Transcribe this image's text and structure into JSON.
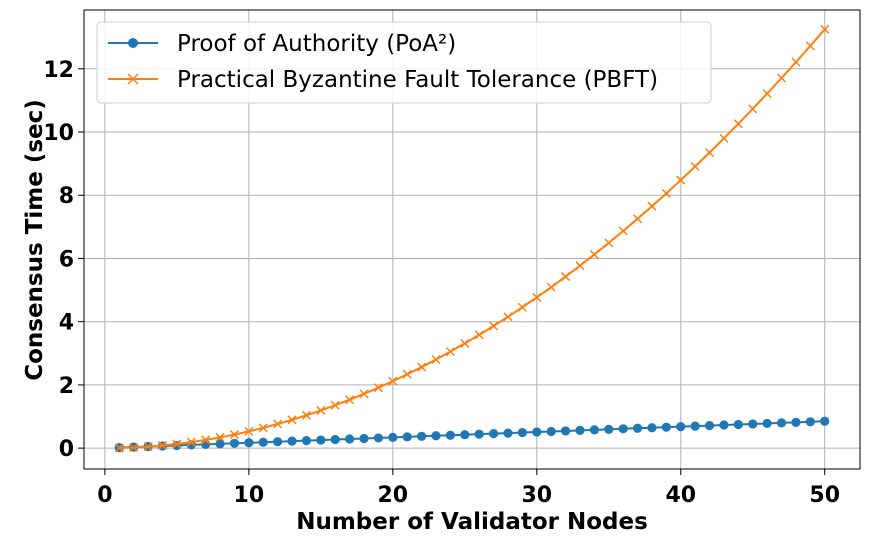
{
  "chart_data": {
    "type": "line",
    "title": "",
    "xlabel": "Number of Validator Nodes",
    "ylabel": "Consensus Time (sec)",
    "xlim": [
      -1.45,
      52.45
    ],
    "ylim": [
      -0.66,
      13.86
    ],
    "xticks": [
      0,
      10,
      20,
      30,
      40,
      50
    ],
    "yticks": [
      0,
      2,
      4,
      6,
      8,
      10,
      12
    ],
    "grid": true,
    "legend_position": "top-left",
    "x": [
      1,
      2,
      3,
      4,
      5,
      6,
      7,
      8,
      9,
      10,
      11,
      12,
      13,
      14,
      15,
      16,
      17,
      18,
      19,
      20,
      21,
      22,
      23,
      24,
      25,
      26,
      27,
      28,
      29,
      30,
      31,
      32,
      33,
      34,
      35,
      36,
      37,
      38,
      39,
      40,
      41,
      42,
      43,
      44,
      45,
      46,
      47,
      48,
      49,
      50
    ],
    "series": [
      {
        "name": "Proof of Authority (PoA²)",
        "color": "#1f77b4",
        "marker": "circle",
        "values": [
          0.017,
          0.034,
          0.051,
          0.068,
          0.085,
          0.102,
          0.119,
          0.136,
          0.153,
          0.17,
          0.187,
          0.204,
          0.221,
          0.238,
          0.255,
          0.272,
          0.289,
          0.306,
          0.323,
          0.34,
          0.357,
          0.374,
          0.391,
          0.408,
          0.425,
          0.442,
          0.459,
          0.476,
          0.493,
          0.51,
          0.527,
          0.544,
          0.561,
          0.578,
          0.595,
          0.612,
          0.629,
          0.646,
          0.663,
          0.68,
          0.697,
          0.714,
          0.731,
          0.748,
          0.765,
          0.782,
          0.799,
          0.816,
          0.833,
          0.85
        ]
      },
      {
        "name": "Practical Byzantine Fault Tolerance (PBFT)",
        "color": "#ff7f0e",
        "marker": "x",
        "values": [
          0.005,
          0.021,
          0.048,
          0.085,
          0.132,
          0.191,
          0.26,
          0.339,
          0.429,
          0.53,
          0.641,
          0.763,
          0.896,
          1.039,
          1.193,
          1.357,
          1.532,
          1.717,
          1.913,
          2.12,
          2.337,
          2.565,
          2.804,
          3.053,
          3.313,
          3.583,
          3.864,
          4.155,
          4.457,
          4.77,
          5.093,
          5.427,
          5.772,
          6.127,
          6.493,
          6.869,
          7.256,
          7.653,
          8.061,
          8.48,
          8.909,
          9.349,
          9.8,
          10.261,
          10.733,
          11.215,
          11.708,
          12.211,
          12.725,
          13.25
        ]
      }
    ]
  }
}
